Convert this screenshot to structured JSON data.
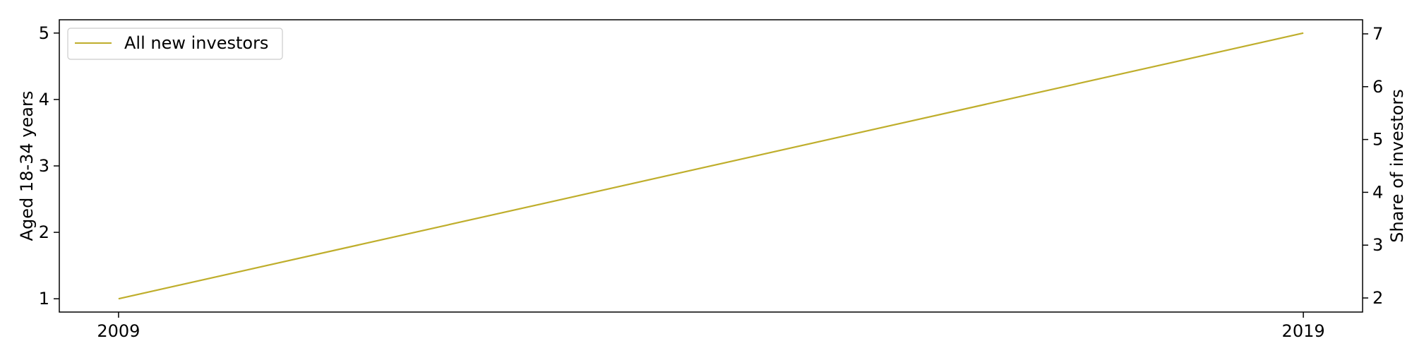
{
  "chart_data": {
    "type": "line",
    "x": [
      2009,
      2019
    ],
    "series": [
      {
        "name": "All new investors",
        "values": [
          1,
          5
        ],
        "color": "#bfae2c",
        "axis": "left"
      }
    ],
    "xlim": [
      2008.5,
      2019.5
    ],
    "ylim_left": [
      0.8,
      5.2
    ],
    "ylim_right": [
      1.7333,
      7.2667
    ],
    "x_ticks": [
      "2009",
      "2019"
    ],
    "y_ticks_left": [
      "1",
      "2",
      "3",
      "4",
      "5"
    ],
    "y_ticks_right": [
      "2",
      "3",
      "4",
      "5",
      "6",
      "7"
    ],
    "ylabel_left": "Aged 18-34 years",
    "ylabel_right": "Share of investors",
    "legend_position": "top-left",
    "grid": false
  }
}
